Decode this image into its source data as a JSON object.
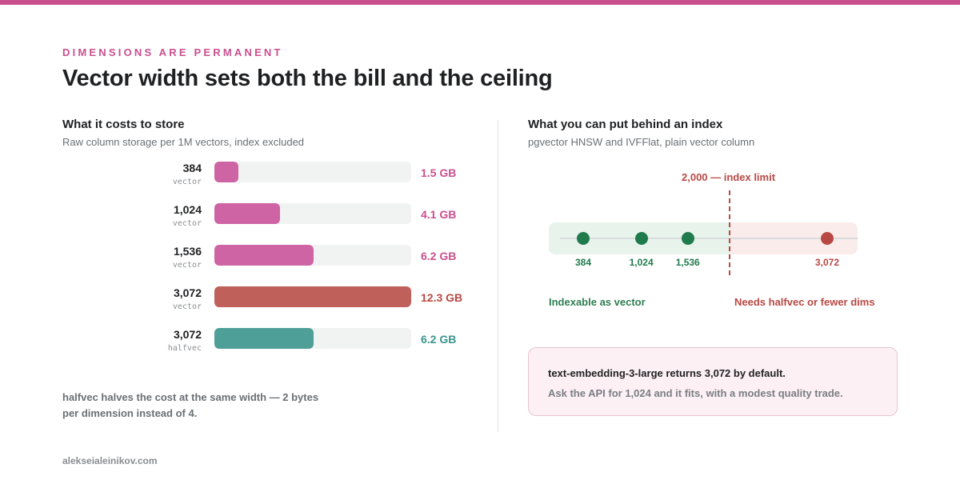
{
  "header": {
    "eyebrow": "DIMENSIONS ARE PERMANENT",
    "title": "Vector width sets both the bill and the ceiling",
    "accent_color": "#c9508f"
  },
  "chart_data": [
    {
      "type": "bar",
      "title": "What it costs to store",
      "subtitle": "Raw column storage per 1M vectors, index excluded",
      "orientation": "horizontal",
      "xlim": [
        0,
        12.3
      ],
      "unit": "GB",
      "rows": [
        {
          "dims": "384",
          "column_type": "vector",
          "value": 1.5,
          "value_label": "1.5 GB",
          "color": "#cf64a4",
          "label_color": "#c9508f"
        },
        {
          "dims": "1,024",
          "column_type": "vector",
          "value": 4.1,
          "value_label": "4.1 GB",
          "color": "#cf64a4",
          "label_color": "#c9508f"
        },
        {
          "dims": "1,536",
          "column_type": "vector",
          "value": 6.2,
          "value_label": "6.2 GB",
          "color": "#cf64a4",
          "label_color": "#c9508f"
        },
        {
          "dims": "3,072",
          "column_type": "vector",
          "value": 12.3,
          "value_label": "12.3 GB",
          "color": "#c0605a",
          "label_color": "#b84844"
        },
        {
          "dims": "3,072",
          "column_type": "halfvec",
          "value": 6.2,
          "value_label": "6.2 GB",
          "color": "#4e9f98",
          "label_color": "#3a938c"
        }
      ],
      "note": "halfvec halves the cost at the same width — 2 bytes per dimension instead of 4."
    },
    {
      "type": "scatter",
      "title": "What you can put behind an index",
      "subtitle": "pgvector HNSW and IVFFlat, plain vector column",
      "xlim": [
        0,
        3500
      ],
      "limit": {
        "value": 2000,
        "label": "2,000 — index limit",
        "color": "#b84844"
      },
      "points": [
        {
          "x": 384,
          "label": "384",
          "color": "#1f7a4c"
        },
        {
          "x": 1024,
          "label": "1,024",
          "color": "#1f7a4c"
        },
        {
          "x": 1536,
          "label": "1,536",
          "color": "#1f7a4c"
        },
        {
          "x": 3072,
          "label": "3,072",
          "color": "#b84844"
        }
      ],
      "zones": {
        "ok_label": "Indexable as vector",
        "bad_label": "Needs halfvec or fewer dims"
      }
    }
  ],
  "callout": {
    "main": "text-embedding-3-large returns 3,072 by default.",
    "sub": "Ask the API for 1,024 and it fits, with a modest quality trade."
  },
  "footer": "alekseialeinikov.com"
}
